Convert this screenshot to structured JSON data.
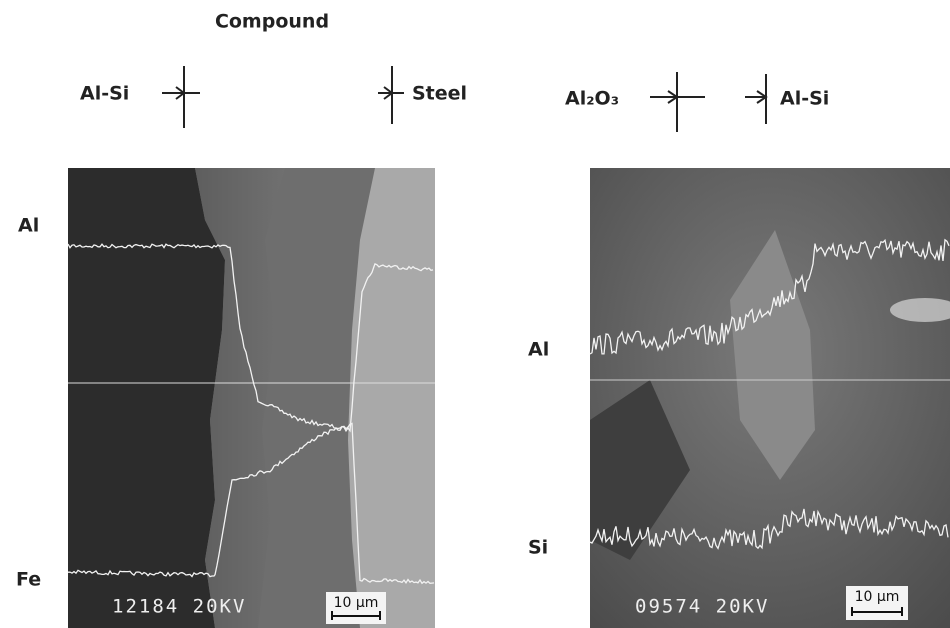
{
  "header": {
    "title": "Compound"
  },
  "markers": {
    "left": [
      "Al-Si",
      "Steel"
    ],
    "right": [
      "Al₂O₃",
      "Al-Si"
    ]
  },
  "panels": [
    {
      "labels": [
        "Al",
        "Fe"
      ],
      "info": "12184 20KV",
      "scale": "10 µm"
    },
    {
      "labels": [
        "Al",
        "Si"
      ],
      "info": "09574 20KV",
      "scale": "10 µm"
    }
  ]
}
